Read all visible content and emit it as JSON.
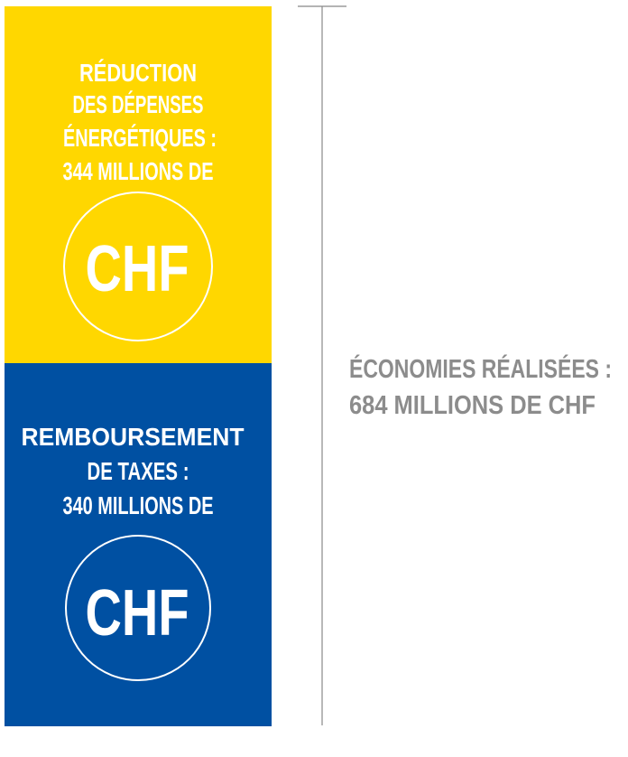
{
  "blocks": [
    {
      "lines": [
        "RÉDUCTION",
        "DES DÉPENSES",
        "ÉNERGÉTIQUES :",
        "344 MILLIONS DE"
      ],
      "unit": "CHF"
    },
    {
      "lines": [
        "REMBOURSEMENT",
        "DE TAXES :",
        "340 MILLIONS DE"
      ],
      "unit": "CHF"
    }
  ],
  "total": {
    "lines": [
      "ÉCONOMIES RÉALISÉES :",
      "684 MILLIONS DE CHF"
    ]
  }
}
